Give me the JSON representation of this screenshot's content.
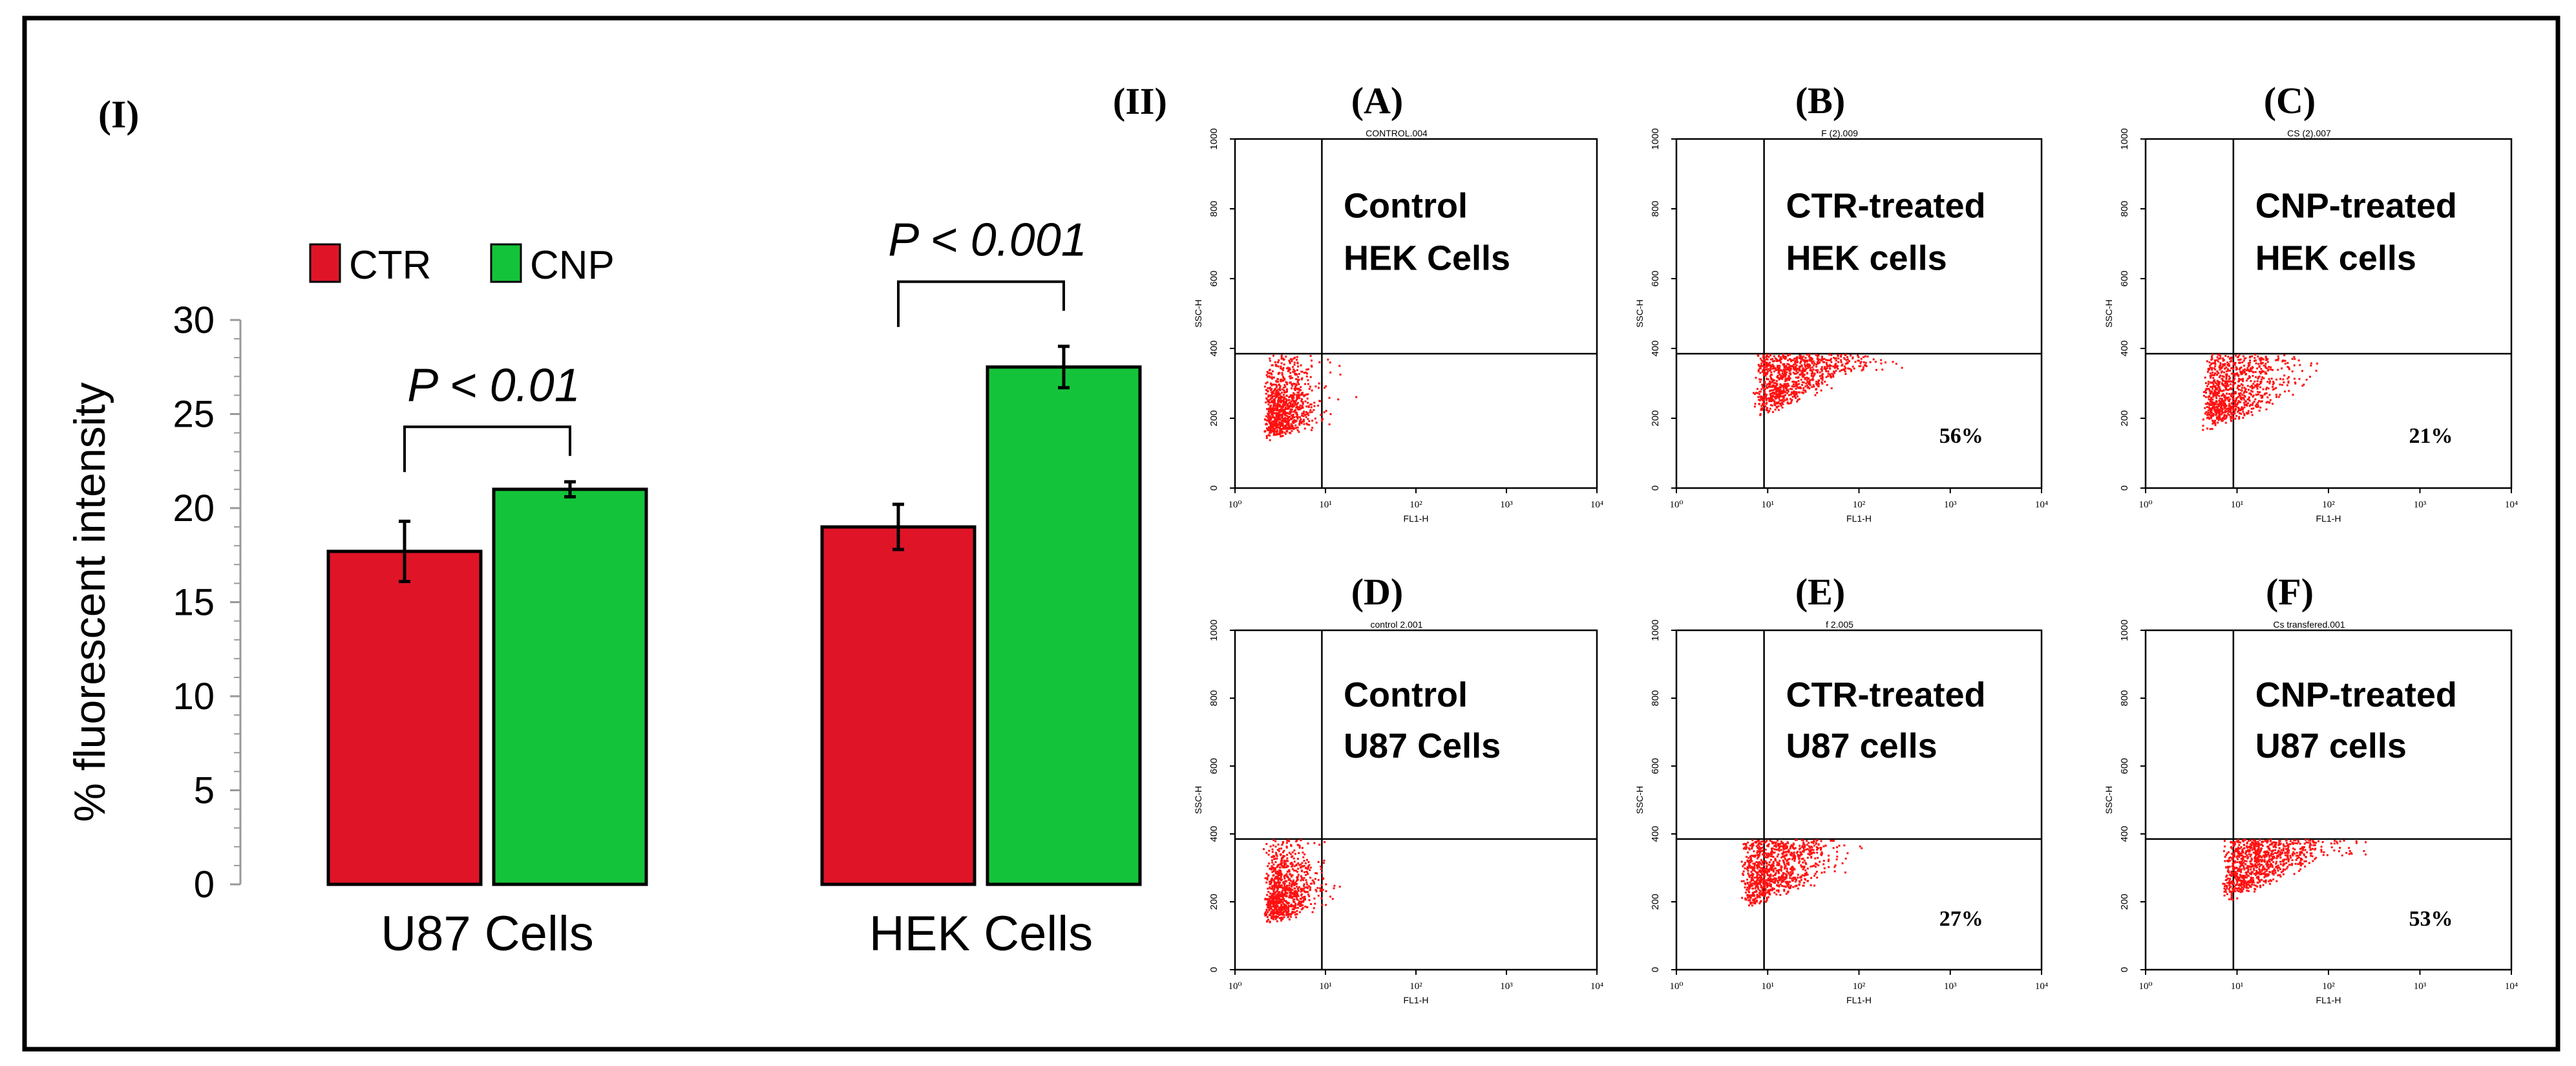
{
  "panel_labels": {
    "part1": "(I)",
    "part2": "(II)"
  },
  "colors": {
    "ctr": "#e01427",
    "cnp": "#13c43a",
    "dots": "#ff1010",
    "frame": "#000000"
  },
  "chart_data": [
    {
      "type": "bar",
      "title": "",
      "xlabel": "",
      "ylabel": "% fluorescent intensity",
      "ylim": [
        0,
        30
      ],
      "yticks": [
        0,
        5,
        10,
        15,
        20,
        25,
        30
      ],
      "categories": [
        "U87 Cells",
        "HEK Cells"
      ],
      "series": [
        {
          "name": "CTR",
          "values": [
            17.7,
            19.0
          ],
          "errors": [
            1.6,
            1.2
          ]
        },
        {
          "name": "CNP",
          "values": [
            21.0,
            27.5
          ],
          "errors": [
            0.4,
            1.1
          ]
        }
      ],
      "annotations": [
        "P < 0.01",
        "P < 0.001"
      ],
      "legend": "top-left"
    },
    {
      "type": "scatter",
      "description": "Flow cytometry dot plots (SSC-H vs FL1-H)",
      "xlabel": "FL1-H",
      "ylabel": "SSC-H",
      "x_scale": "log",
      "xticks": [
        "10⁰",
        "10¹",
        "10²",
        "10³",
        "10⁴"
      ],
      "yticks": [
        "0",
        "200",
        "400",
        "600",
        "800",
        "1000"
      ],
      "panels": [
        {
          "label": "(A)",
          "header": "CONTROL.004",
          "text_line1": "Control",
          "text_line2": "HEK Cells",
          "percent": "",
          "shift": 0.0
        },
        {
          "label": "(B)",
          "header": "F (2).009",
          "text_line1": "CTR-treated",
          "text_line2": "HEK cells",
          "percent": "56%",
          "shift": 0.6
        },
        {
          "label": "(C)",
          "header": "CS (2).007",
          "text_line1": "CNP-treated",
          "text_line2": "HEK cells",
          "percent": "21%",
          "shift": 0.35
        },
        {
          "label": "(D)",
          "header": "control 2.001",
          "text_line1": "Control",
          "text_line2": "U87 Cells",
          "percent": "",
          "shift": 0.0
        },
        {
          "label": "(E)",
          "header": "f 2.005",
          "text_line1": "CTR-treated",
          "text_line2": "U87 cells",
          "percent": "27%",
          "shift": 0.45
        },
        {
          "label": "(F)",
          "header": "Cs transfered.001",
          "text_line1": "CNP-treated",
          "text_line2": "U87 cells",
          "percent": "53%",
          "shift": 0.6
        }
      ]
    }
  ]
}
